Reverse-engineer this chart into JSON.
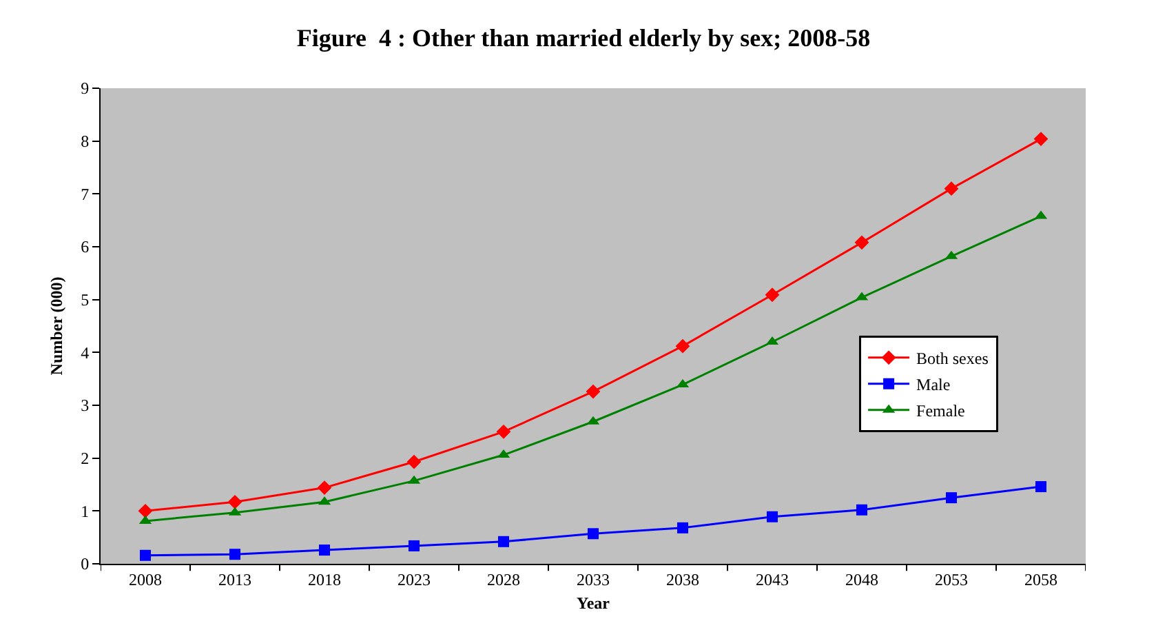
{
  "chart_data": {
    "type": "line",
    "title": "Figure  4 : Other than married elderly by sex; 2008-58",
    "xlabel": "Year",
    "ylabel": "Number (000)",
    "categories": [
      "2008",
      "2013",
      "2018",
      "2023",
      "2028",
      "2033",
      "2038",
      "2043",
      "2048",
      "2053",
      "2058"
    ],
    "series": [
      {
        "name": "Both sexes",
        "color": "#ff0000",
        "marker": "diamond",
        "values": [
          1.0,
          1.17,
          1.44,
          1.93,
          2.5,
          3.26,
          4.12,
          5.09,
          6.08,
          7.1,
          8.04
        ]
      },
      {
        "name": "Male",
        "color": "#0000ff",
        "marker": "square",
        "values": [
          0.16,
          0.18,
          0.26,
          0.34,
          0.42,
          0.57,
          0.68,
          0.89,
          1.02,
          1.25,
          1.46
        ]
      },
      {
        "name": "Female",
        "color": "#008000",
        "marker": "triangle",
        "values": [
          0.81,
          0.97,
          1.17,
          1.57,
          2.06,
          2.69,
          3.39,
          4.2,
          5.04,
          5.82,
          6.58
        ]
      }
    ],
    "ylim": [
      0,
      9
    ],
    "yticks": [
      0,
      1,
      2,
      3,
      4,
      5,
      6,
      7,
      8,
      9
    ],
    "grid": false,
    "legend": "right",
    "line_style": "solid"
  }
}
